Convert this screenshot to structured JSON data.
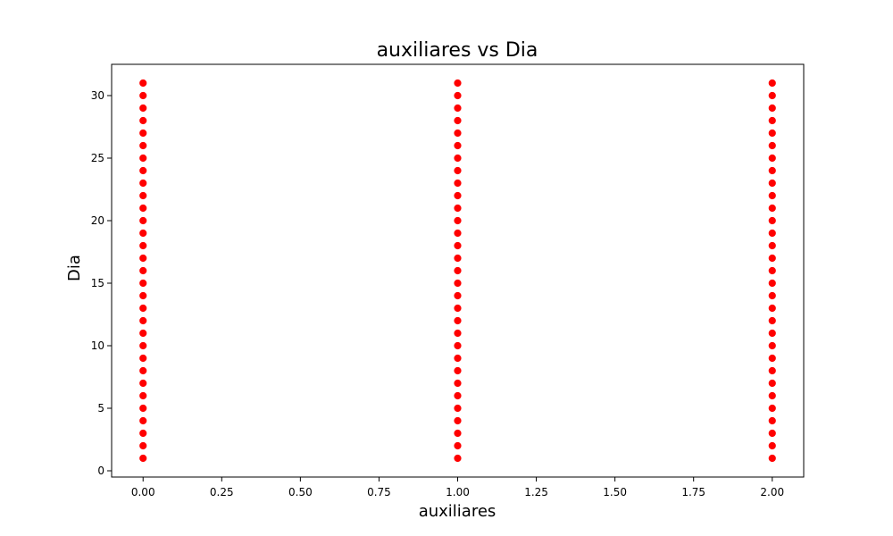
{
  "chart_data": {
    "type": "scatter",
    "title": "auxiliares vs Dia",
    "xlabel": "auxiliares",
    "ylabel": "Dia",
    "xlim": [
      -0.1,
      2.1
    ],
    "ylim": [
      -0.5,
      32.5
    ],
    "x_ticks": [
      0.0,
      0.25,
      0.5,
      0.75,
      1.0,
      1.25,
      1.5,
      1.75,
      2.0
    ],
    "x_tick_labels": [
      "0.00",
      "0.25",
      "0.50",
      "0.75",
      "1.00",
      "1.25",
      "1.50",
      "1.75",
      "2.00"
    ],
    "y_ticks": [
      0,
      5,
      10,
      15,
      20,
      25,
      30
    ],
    "y_tick_labels": [
      "0",
      "5",
      "10",
      "15",
      "20",
      "25",
      "30"
    ],
    "grid": false,
    "legend": false,
    "marker_color": "#ff0000",
    "marker_edge_color": "#ffffff",
    "series": [
      {
        "x": [
          0,
          0,
          0,
          0,
          0,
          0,
          0,
          0,
          0,
          0,
          0,
          0,
          0,
          0,
          0,
          0,
          0,
          0,
          0,
          0,
          0,
          0,
          0,
          0,
          0,
          0,
          0,
          0,
          0,
          0,
          0,
          1,
          1,
          1,
          1,
          1,
          1,
          1,
          1,
          1,
          1,
          1,
          1,
          1,
          1,
          1,
          1,
          1,
          1,
          1,
          1,
          1,
          1,
          1,
          1,
          1,
          1,
          1,
          1,
          1,
          1,
          1,
          2,
          2,
          2,
          2,
          2,
          2,
          2,
          2,
          2,
          2,
          2,
          2,
          2,
          2,
          2,
          2,
          2,
          2,
          2,
          2,
          2,
          2,
          2,
          2,
          2,
          2,
          2,
          2,
          2,
          2,
          2
        ],
        "y": [
          1,
          2,
          3,
          4,
          5,
          6,
          7,
          8,
          9,
          10,
          11,
          12,
          13,
          14,
          15,
          16,
          17,
          18,
          19,
          20,
          21,
          22,
          23,
          24,
          25,
          26,
          27,
          28,
          29,
          30,
          31,
          1,
          2,
          3,
          4,
          5,
          6,
          7,
          8,
          9,
          10,
          11,
          12,
          13,
          14,
          15,
          16,
          17,
          18,
          19,
          20,
          21,
          22,
          23,
          24,
          25,
          26,
          27,
          28,
          29,
          30,
          31,
          1,
          2,
          3,
          4,
          5,
          6,
          7,
          8,
          9,
          10,
          11,
          12,
          13,
          14,
          15,
          16,
          17,
          18,
          19,
          20,
          21,
          22,
          23,
          24,
          25,
          26,
          27,
          28,
          29,
          30,
          31
        ]
      }
    ]
  }
}
